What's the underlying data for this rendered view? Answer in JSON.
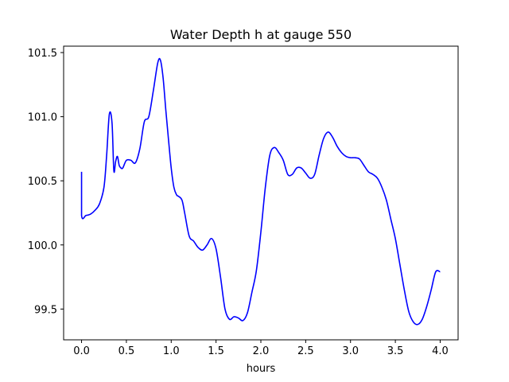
{
  "chart_data": {
    "type": "line",
    "title": "Water Depth h at gauge 550",
    "xlabel": "hours",
    "ylabel": "",
    "xlim": [
      -0.2,
      4.2
    ],
    "ylim": [
      99.26,
      101.55
    ],
    "grid": false,
    "xticks": [
      0.0,
      0.5,
      1.0,
      1.5,
      2.0,
      2.5,
      3.0,
      3.5,
      4.0
    ],
    "xtick_labels": [
      "0.0",
      "0.5",
      "1.0",
      "1.5",
      "2.0",
      "2.5",
      "3.0",
      "3.5",
      "4.0"
    ],
    "yticks": [
      99.5,
      100.0,
      100.5,
      101.0,
      101.5
    ],
    "ytick_labels": [
      "99.5",
      "100.0",
      "100.5",
      "101.0",
      "101.5"
    ],
    "series": [
      {
        "color": "#0000ff",
        "x": [
          0.0,
          0.0,
          0.05,
          0.1,
          0.15,
          0.2,
          0.25,
          0.28,
          0.31,
          0.34,
          0.36,
          0.38,
          0.4,
          0.42,
          0.44,
          0.46,
          0.5,
          0.55,
          0.6,
          0.65,
          0.7,
          0.75,
          0.8,
          0.85,
          0.88,
          0.91,
          0.94,
          0.97,
          1.0,
          1.03,
          1.06,
          1.08,
          1.12,
          1.15,
          1.2,
          1.25,
          1.3,
          1.35,
          1.4,
          1.45,
          1.5,
          1.55,
          1.6,
          1.65,
          1.7,
          1.75,
          1.8,
          1.85,
          1.9,
          1.95,
          2.0,
          2.05,
          2.1,
          2.15,
          2.2,
          2.25,
          2.3,
          2.35,
          2.4,
          2.45,
          2.5,
          2.55,
          2.6,
          2.65,
          2.7,
          2.75,
          2.8,
          2.85,
          2.9,
          2.95,
          3.0,
          3.05,
          3.1,
          3.15,
          3.2,
          3.25,
          3.3,
          3.35,
          3.4,
          3.45,
          3.5,
          3.55,
          3.6,
          3.65,
          3.7,
          3.75,
          3.8,
          3.85,
          3.9,
          3.95,
          4.0
        ],
        "y": [
          100.57,
          100.23,
          100.23,
          100.24,
          100.27,
          100.32,
          100.45,
          100.7,
          101.02,
          100.95,
          100.58,
          100.65,
          100.69,
          100.62,
          100.6,
          100.6,
          100.66,
          100.66,
          100.64,
          100.75,
          100.96,
          101.0,
          101.2,
          101.42,
          101.44,
          101.3,
          101.05,
          100.82,
          100.6,
          100.45,
          100.39,
          100.38,
          100.35,
          100.25,
          100.07,
          100.03,
          99.98,
          99.96,
          100.0,
          100.05,
          99.97,
          99.75,
          99.5,
          99.42,
          99.44,
          99.43,
          99.41,
          99.47,
          99.63,
          99.8,
          100.1,
          100.45,
          100.7,
          100.76,
          100.72,
          100.66,
          100.55,
          100.55,
          100.6,
          100.6,
          100.56,
          100.52,
          100.55,
          100.7,
          100.83,
          100.88,
          100.84,
          100.77,
          100.72,
          100.69,
          100.68,
          100.68,
          100.67,
          100.62,
          100.57,
          100.55,
          100.52,
          100.45,
          100.35,
          100.2,
          100.05,
          99.85,
          99.65,
          99.48,
          99.4,
          99.38,
          99.42,
          99.52,
          99.65,
          99.79,
          99.79
        ]
      }
    ]
  }
}
